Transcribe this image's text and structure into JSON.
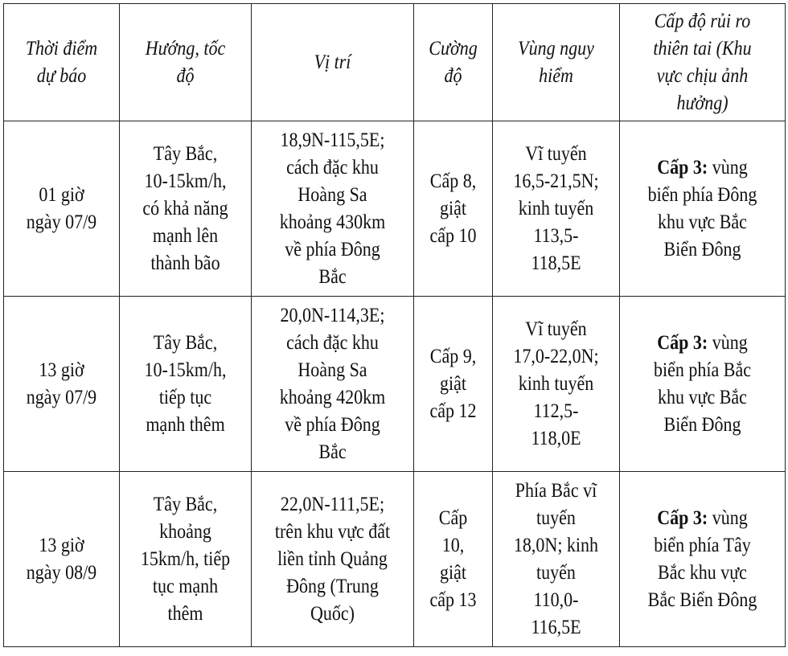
{
  "headers": [
    [
      "Thời điểm",
      "dự báo"
    ],
    [
      "Hướng, tốc",
      "độ"
    ],
    [
      "Vị trí"
    ],
    [
      "Cường",
      "độ"
    ],
    [
      "Vùng nguy",
      "hiểm"
    ],
    [
      "Cấp độ rủi ro",
      "thiên tai (Khu",
      "vực chịu ảnh",
      "hưởng)"
    ]
  ],
  "rows": [
    {
      "time": [
        "01 giờ",
        "ngày 07/9"
      ],
      "direction": [
        "Tây Bắc,",
        "10-15km/h,",
        "có khả năng",
        "mạnh lên",
        "thành bão"
      ],
      "position": [
        "18,9N-115,5E;",
        "cách đặc khu",
        "Hoàng Sa",
        "khoảng 430km",
        "về phía Đông",
        "Bắc"
      ],
      "intensity": [
        "Cấp 8,",
        "giật",
        "cấp 10"
      ],
      "danger_zone": [
        "Vĩ tuyến",
        "16,5-21,5N;",
        "kinh tuyến",
        "113,5-",
        "118,5E"
      ],
      "risk_level": "Cấp 3:",
      "risk_area": [
        " vùng",
        "biển phía Đông",
        "khu vực Bắc",
        "Biển Đông"
      ]
    },
    {
      "time": [
        "13 giờ",
        "ngày 07/9"
      ],
      "direction": [
        "Tây Bắc,",
        "10-15km/h,",
        "tiếp tục",
        "mạnh thêm"
      ],
      "position": [
        "20,0N-114,3E;",
        "cách đặc khu",
        "Hoàng Sa",
        "khoảng 420km",
        "về phía Đông",
        "Bắc"
      ],
      "intensity": [
        "Cấp 9,",
        "giật",
        "cấp 12"
      ],
      "danger_zone": [
        "Vĩ tuyến",
        "17,0-22,0N;",
        "kinh tuyến",
        "112,5-",
        "118,0E"
      ],
      "risk_level": "Cấp 3:",
      "risk_area": [
        " vùng",
        "biển phía Bắc",
        "khu vực Bắc",
        "Biển Đông"
      ]
    },
    {
      "time": [
        "13 giờ",
        "ngày 08/9"
      ],
      "direction": [
        "Tây Bắc,",
        "khoảng",
        "15km/h, tiếp",
        "tục mạnh",
        "thêm"
      ],
      "position": [
        "22,0N-111,5E;",
        "trên khu vực đất",
        "liền tỉnh Quảng",
        "Đông (Trung",
        "Quốc)"
      ],
      "intensity": [
        "Cấp",
        "10,",
        "giật",
        "cấp 13"
      ],
      "danger_zone": [
        "Phía Bắc vĩ",
        "tuyến",
        "18,0N; kinh",
        "tuyến",
        "110,0-",
        "116,5E"
      ],
      "risk_level": "Cấp 3:",
      "risk_area": [
        " vùng",
        "biển phía Tây",
        "Bắc khu vực",
        "Bắc Biển Đông"
      ]
    }
  ]
}
